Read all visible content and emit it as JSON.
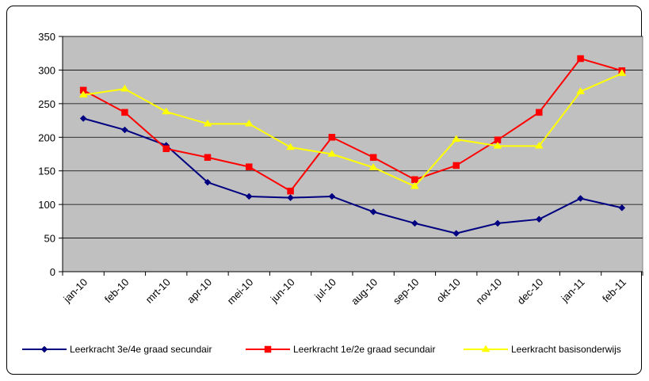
{
  "chart_data": {
    "type": "line",
    "title": "",
    "xlabel": "",
    "ylabel": "",
    "categories": [
      "jan-10",
      "feb-10",
      "mrt-10",
      "apr-10",
      "mei-10",
      "jun-10",
      "jul-10",
      "aug-10",
      "sep-10",
      "okt-10",
      "nov-10",
      "dec-10",
      "jan-11",
      "feb-11"
    ],
    "ylim": [
      0,
      350
    ],
    "yticks": [
      "0",
      "50",
      "100",
      "150",
      "200",
      "250",
      "300",
      "350"
    ],
    "grid": true,
    "plot_background": "#c0c0c0",
    "legend_position": "bottom",
    "series": [
      {
        "name": "Leerkracht 3e/4e graad secundair",
        "color": "#000080",
        "marker": "diamond",
        "values": [
          228,
          211,
          188,
          133,
          112,
          110,
          112,
          89,
          72,
          57,
          72,
          78,
          109,
          95
        ]
      },
      {
        "name": "Leerkracht 1e/2e graad secundair",
        "color": "#ff0000",
        "marker": "square",
        "values": [
          270,
          237,
          183,
          170,
          156,
          120,
          200,
          170,
          137,
          158,
          196,
          237,
          317,
          299
        ]
      },
      {
        "name": "Leerkracht basisonderwijs",
        "color": "#ffff00",
        "marker": "triangle",
        "values": [
          263,
          272,
          238,
          220,
          220,
          185,
          175,
          155,
          127,
          197,
          187,
          187,
          268,
          295
        ]
      }
    ]
  }
}
